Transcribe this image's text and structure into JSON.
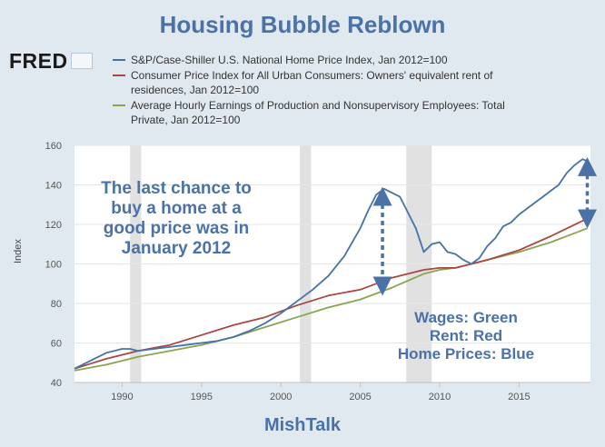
{
  "header": {
    "title": "Housing Bubble Reblown",
    "logo_text": "FRED"
  },
  "legend": [
    {
      "label": "S&P/Case-Shiller U.S. National Home Price Index, Jan 2012=100",
      "color": "#4572a7"
    },
    {
      "label": "Consumer Price Index for All Urban Consumers: Owners' equivalent rent of residences, Jan 2012=100",
      "color": "#aa4643"
    },
    {
      "label": "Average Hourly Earnings of Production and Nonsupervisory Employees: Total Private, Jan 2012=100",
      "color": "#89a54e"
    }
  ],
  "annotations": {
    "left": "The last chance to buy a home at a good price was in January 2012",
    "right": [
      "Wages: Green",
      "Rent: Red",
      "Home Prices: Blue"
    ]
  },
  "footer": {
    "text": "MishTalk"
  },
  "chart_data": {
    "type": "line",
    "ylabel": "Index",
    "xlim": [
      1987.0,
      2019.5
    ],
    "ylim": [
      40,
      160
    ],
    "x_ticks": [
      1990,
      1995,
      2000,
      2005,
      2010,
      2015
    ],
    "y_ticks": [
      40,
      60,
      80,
      100,
      120,
      140,
      160
    ],
    "grid": "horizontal",
    "recessions": [
      [
        1990.5,
        1991.2
      ],
      [
        2001.2,
        2001.9
      ],
      [
        2007.9,
        2009.5
      ]
    ],
    "series": [
      {
        "name": "S&P/Case-Shiller U.S. National Home Price Index, Jan 2012=100",
        "color": "#4572a7",
        "x": [
          1987.0,
          1988.0,
          1989.0,
          1990.0,
          1990.5,
          1991.0,
          1992.0,
          1993.0,
          1994.0,
          1995.0,
          1996.0,
          1997.0,
          1998.0,
          1999.0,
          2000.0,
          2001.0,
          2002.0,
          2003.0,
          2004.0,
          2005.0,
          2005.5,
          2006.0,
          2006.5,
          2007.0,
          2007.5,
          2008.0,
          2008.5,
          2009.0,
          2009.5,
          2010.0,
          2010.5,
          2011.0,
          2011.5,
          2012.0,
          2012.5,
          2013.0,
          2013.5,
          2014.0,
          2014.5,
          2015.0,
          2015.5,
          2016.0,
          2016.5,
          2017.0,
          2017.5,
          2018.0,
          2018.5,
          2019.0,
          2019.3
        ],
        "values": [
          47,
          51,
          55,
          57,
          57,
          56,
          57,
          58,
          59,
          60,
          61,
          63,
          66,
          70,
          75,
          81,
          87,
          94,
          104,
          118,
          127,
          135,
          138,
          136,
          134,
          126,
          118,
          106,
          110,
          111,
          106,
          105,
          102,
          100,
          103,
          109,
          113,
          119,
          121,
          125,
          128,
          131,
          134,
          137,
          140,
          146,
          150,
          153,
          152
        ]
      },
      {
        "name": "Consumer Price Index for All Urban Consumers: Owners' equivalent rent of residences, Jan 2012=100",
        "color": "#aa4643",
        "x": [
          1987.0,
          1989.0,
          1991.0,
          1993.0,
          1995.0,
          1997.0,
          1999.0,
          2001.0,
          2003.0,
          2005.0,
          2007.0,
          2009.0,
          2010.0,
          2011.0,
          2012.0,
          2013.0,
          2015.0,
          2017.0,
          2019.3
        ],
        "values": [
          47,
          52,
          56,
          59,
          64,
          69,
          73,
          79,
          84,
          87,
          93,
          97,
          98,
          98,
          100,
          102,
          107,
          114,
          123
        ]
      },
      {
        "name": "Average Hourly Earnings of Production and Nonsupervisory Employees: Total Private, Jan 2012=100",
        "color": "#89a54e",
        "x": [
          1987.0,
          1989.0,
          1991.0,
          1993.0,
          1995.0,
          1997.0,
          1999.0,
          2001.0,
          2003.0,
          2005.0,
          2007.0,
          2009.0,
          2010.0,
          2011.0,
          2012.0,
          2013.0,
          2015.0,
          2017.0,
          2019.3
        ],
        "values": [
          46,
          49,
          53,
          56,
          59,
          63,
          68,
          73,
          78,
          82,
          88,
          95,
          97,
          98,
          100,
          102,
          106,
          111,
          118
        ]
      }
    ],
    "arrows": [
      {
        "x": 2006.4,
        "from": 137,
        "to": 86
      },
      {
        "x": 2019.3,
        "from": 152,
        "to": 120
      }
    ]
  }
}
